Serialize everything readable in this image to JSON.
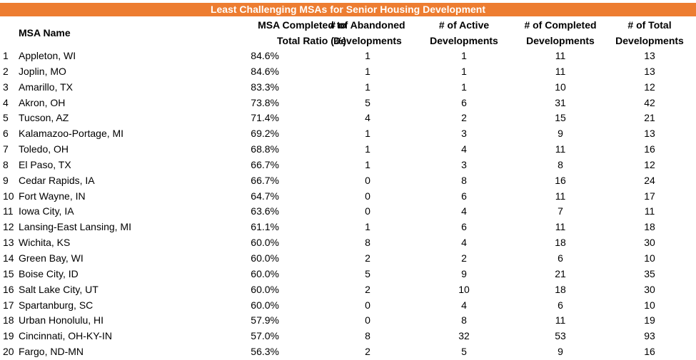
{
  "title": "Least Challenging MSAs for Senior Housing Development",
  "headers": {
    "name": "MSA Name",
    "ratio_l1": "MSA Completed to",
    "ratio_l2": "Total Ratio (%)",
    "abandoned_l1": "# of Abandoned",
    "abandoned_l2": "Developments",
    "active_l1": "# of Active",
    "active_l2": "Developments",
    "completed_l1": "# of Completed",
    "completed_l2": "Developments",
    "total_l1": "# of Total",
    "total_l2": "Developments"
  },
  "rows": [
    {
      "rank": "1",
      "name": "Appleton, WI",
      "ratio": "84.6%",
      "abandoned": "1",
      "active": "1",
      "completed": "11",
      "total": "13"
    },
    {
      "rank": "2",
      "name": "Joplin, MO",
      "ratio": "84.6%",
      "abandoned": "1",
      "active": "1",
      "completed": "11",
      "total": "13"
    },
    {
      "rank": "3",
      "name": "Amarillo, TX",
      "ratio": "83.3%",
      "abandoned": "1",
      "active": "1",
      "completed": "10",
      "total": "12"
    },
    {
      "rank": "4",
      "name": "Akron, OH",
      "ratio": "73.8%",
      "abandoned": "5",
      "active": "6",
      "completed": "31",
      "total": "42"
    },
    {
      "rank": "5",
      "name": "Tucson, AZ",
      "ratio": "71.4%",
      "abandoned": "4",
      "active": "2",
      "completed": "15",
      "total": "21"
    },
    {
      "rank": "6",
      "name": "Kalamazoo-Portage, MI",
      "ratio": "69.2%",
      "abandoned": "1",
      "active": "3",
      "completed": "9",
      "total": "13"
    },
    {
      "rank": "7",
      "name": "Toledo, OH",
      "ratio": "68.8%",
      "abandoned": "1",
      "active": "4",
      "completed": "11",
      "total": "16"
    },
    {
      "rank": "8",
      "name": "El Paso, TX",
      "ratio": "66.7%",
      "abandoned": "1",
      "active": "3",
      "completed": "8",
      "total": "12"
    },
    {
      "rank": "9",
      "name": "Cedar Rapids, IA",
      "ratio": "66.7%",
      "abandoned": "0",
      "active": "8",
      "completed": "16",
      "total": "24"
    },
    {
      "rank": "10",
      "name": "Fort Wayne, IN",
      "ratio": "64.7%",
      "abandoned": "0",
      "active": "6",
      "completed": "11",
      "total": "17"
    },
    {
      "rank": "11",
      "name": "Iowa City, IA",
      "ratio": "63.6%",
      "abandoned": "0",
      "active": "4",
      "completed": "7",
      "total": "11"
    },
    {
      "rank": "12",
      "name": "Lansing-East Lansing, MI",
      "ratio": "61.1%",
      "abandoned": "1",
      "active": "6",
      "completed": "11",
      "total": "18"
    },
    {
      "rank": "13",
      "name": "Wichita, KS",
      "ratio": "60.0%",
      "abandoned": "8",
      "active": "4",
      "completed": "18",
      "total": "30"
    },
    {
      "rank": "14",
      "name": "Green Bay, WI",
      "ratio": "60.0%",
      "abandoned": "2",
      "active": "2",
      "completed": "6",
      "total": "10"
    },
    {
      "rank": "15",
      "name": "Boise City, ID",
      "ratio": "60.0%",
      "abandoned": "5",
      "active": "9",
      "completed": "21",
      "total": "35"
    },
    {
      "rank": "16",
      "name": "Salt Lake City, UT",
      "ratio": "60.0%",
      "abandoned": "2",
      "active": "10",
      "completed": "18",
      "total": "30"
    },
    {
      "rank": "17",
      "name": "Spartanburg, SC",
      "ratio": "60.0%",
      "abandoned": "0",
      "active": "4",
      "completed": "6",
      "total": "10"
    },
    {
      "rank": "18",
      "name": "Urban Honolulu, HI",
      "ratio": "57.9%",
      "abandoned": "0",
      "active": "8",
      "completed": "11",
      "total": "19"
    },
    {
      "rank": "19",
      "name": "Cincinnati, OH-KY-IN",
      "ratio": "57.0%",
      "abandoned": "8",
      "active": "32",
      "completed": "53",
      "total": "93"
    },
    {
      "rank": "20",
      "name": "Fargo, ND-MN",
      "ratio": "56.3%",
      "abandoned": "2",
      "active": "5",
      "completed": "9",
      "total": "16"
    }
  ],
  "colors": {
    "title_background": "#ED7D31",
    "title_text": "#FFFFFF"
  }
}
